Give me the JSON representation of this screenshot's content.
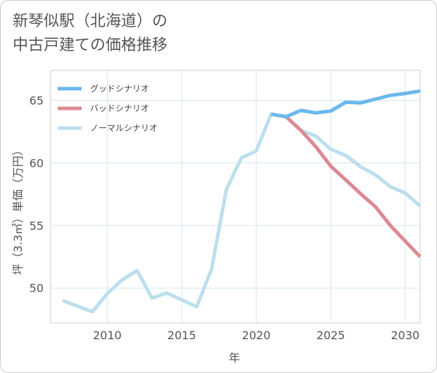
{
  "title": {
    "line1": "新琴似駅（北海道）の",
    "line2": "中古戸建ての価格推移"
  },
  "chart_data": {
    "type": "line",
    "xlabel": "年",
    "ylabel": "坪（3.3㎡）単価（万円）",
    "xlim": [
      2006.2,
      2031.0
    ],
    "ylim": [
      47.2,
      67.4
    ],
    "xticks": [
      2010,
      2015,
      2020,
      2025,
      2030
    ],
    "yticks": [
      50,
      55,
      60,
      65
    ],
    "grid": true,
    "legend_position": "top-left",
    "series": [
      {
        "name": "グッドシナリオ",
        "color": "#6ab8ec",
        "x": [
          2021,
          2022,
          2023,
          2024,
          2025,
          2026,
          2027,
          2028,
          2029,
          2030,
          2031
        ],
        "y": [
          63.9,
          63.7,
          64.2,
          64.0,
          64.15,
          64.85,
          64.8,
          65.1,
          65.4,
          65.55,
          65.75
        ]
      },
      {
        "name": "バッドシナリオ",
        "color": "#dc8a92",
        "x": [
          2021,
          2022,
          2023,
          2024,
          2025,
          2026,
          2027,
          2028,
          2029,
          2030,
          2031
        ],
        "y": [
          63.9,
          63.7,
          62.6,
          61.3,
          59.75,
          58.65,
          57.55,
          56.5,
          55.0,
          53.75,
          52.5
        ]
      },
      {
        "name": "ノーマルシナリオ",
        "color": "#bcdfee",
        "x": [
          2007,
          2008,
          2009,
          2010,
          2011,
          2012,
          2013,
          2014,
          2015,
          2016,
          2017,
          2018,
          2019,
          2020,
          2021,
          2022,
          2023,
          2024,
          2025,
          2026,
          2027,
          2028,
          2029,
          2030,
          2031
        ],
        "y": [
          49.0,
          48.55,
          48.1,
          49.55,
          50.65,
          51.4,
          49.2,
          49.6,
          49.05,
          48.5,
          51.5,
          57.9,
          60.4,
          60.95,
          63.9,
          63.7,
          62.6,
          62.15,
          61.1,
          60.6,
          59.7,
          59.05,
          58.1,
          57.6,
          56.55
        ]
      }
    ]
  }
}
